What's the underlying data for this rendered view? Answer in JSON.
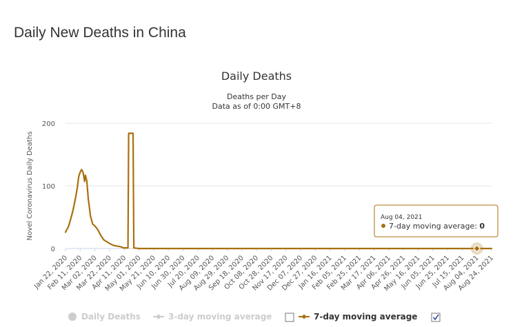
{
  "page": {
    "title": "Daily New Deaths in China"
  },
  "chart_data": {
    "type": "line",
    "title": "Daily Deaths",
    "subtitle": "Deaths per Day",
    "subtitle2": "Data as of 0:00 GMT+8",
    "ylabel": "Novel Coronavirus Daily Deaths",
    "xlabel": "",
    "ylim": [
      0,
      200
    ],
    "yticks": [
      0,
      100,
      200
    ],
    "grid": true,
    "x_start": "Jan 22, 2020",
    "x_end": "Aug 24, 2021",
    "categories": [
      "Jan 22, 2020",
      "Feb 11, 2020",
      "Mar 02, 2020",
      "Mar 22, 2020",
      "Apr 11, 2020",
      "May 01, 2020",
      "May 21, 2020",
      "Jun 10, 2020",
      "Jun 30, 2020",
      "Jul 20, 2020",
      "Aug 09, 2020",
      "Aug 29, 2020",
      "Sep 18, 2020",
      "Oct 08, 2020",
      "Oct 28, 2020",
      "Nov 17, 2020",
      "Dec 07, 2020",
      "Dec 27, 2020",
      "Jan 16, 2021",
      "Feb 05, 2021",
      "Feb 25, 2021",
      "Mar 17, 2021",
      "Apr 06, 2021",
      "Apr 26, 2021",
      "May 16, 2021",
      "Jun 05, 2021",
      "Jun 25, 2021",
      "Jul 15, 2021",
      "Aug 04, 2021",
      "Aug 24, 2021"
    ],
    "series": [
      {
        "name": "Daily Deaths",
        "visible": false,
        "color": "#cccccc",
        "checked": false
      },
      {
        "name": "3-day moving average",
        "visible": false,
        "color": "#cccccc",
        "checked": false
      },
      {
        "name": "7-day moving average",
        "visible": true,
        "color": "#a86f0f",
        "checked": true,
        "points": [
          {
            "x": "Jan 22, 2020",
            "y": 26
          },
          {
            "x": "Jan 26, 2020",
            "y": 35
          },
          {
            "x": "Jan 29, 2020",
            "y": 47
          },
          {
            "x": "Feb 01, 2020",
            "y": 60
          },
          {
            "x": "Feb 04, 2020",
            "y": 77
          },
          {
            "x": "Feb 07, 2020",
            "y": 96
          },
          {
            "x": "Feb 09, 2020",
            "y": 115
          },
          {
            "x": "Feb 11, 2020",
            "y": 122
          },
          {
            "x": "Feb 13, 2020",
            "y": 126
          },
          {
            "x": "Feb 15, 2020",
            "y": 121
          },
          {
            "x": "Feb 17, 2020",
            "y": 107
          },
          {
            "x": "Feb 18, 2020",
            "y": 117
          },
          {
            "x": "Feb 20, 2020",
            "y": 108
          },
          {
            "x": "Feb 22, 2020",
            "y": 80
          },
          {
            "x": "Feb 25, 2020",
            "y": 52
          },
          {
            "x": "Feb 28, 2020",
            "y": 39
          },
          {
            "x": "Mar 02, 2020",
            "y": 36
          },
          {
            "x": "Mar 06, 2020",
            "y": 30
          },
          {
            "x": "Mar 10, 2020",
            "y": 21
          },
          {
            "x": "Mar 14, 2020",
            "y": 14
          },
          {
            "x": "Mar 18, 2020",
            "y": 11
          },
          {
            "x": "Mar 22, 2020",
            "y": 8
          },
          {
            "x": "Mar 27, 2020",
            "y": 5
          },
          {
            "x": "Apr 01, 2020",
            "y": 4
          },
          {
            "x": "Apr 06, 2020",
            "y": 3
          },
          {
            "x": "Apr 10, 2020",
            "y": 1
          },
          {
            "x": "Apr 14, 2020",
            "y": 1
          },
          {
            "x": "Apr 16, 2020",
            "y": 1
          },
          {
            "x": "Apr 17, 2020",
            "y": 184
          },
          {
            "x": "Apr 23, 2020",
            "y": 184
          },
          {
            "x": "Apr 24, 2020",
            "y": 1
          },
          {
            "x": "May 01, 2020",
            "y": 0
          },
          {
            "x": "Jun 10, 2020",
            "y": 0
          },
          {
            "x": "Aug 09, 2020",
            "y": 0
          },
          {
            "x": "Dec 07, 2020",
            "y": 0
          },
          {
            "x": "Jan 16, 2021",
            "y": 0
          },
          {
            "x": "Feb 05, 2021",
            "y": 0
          },
          {
            "x": "Apr 06, 2021",
            "y": 0
          },
          {
            "x": "Jun 05, 2021",
            "y": 0
          },
          {
            "x": "Aug 04, 2021",
            "y": 0
          },
          {
            "x": "Aug 24, 2021",
            "y": 0
          }
        ]
      }
    ],
    "tooltip": {
      "date": "Aug 04, 2021",
      "series_label": "7-day moving average",
      "value": "0"
    },
    "legend": {
      "placement": "bottom",
      "items": [
        {
          "label": "Daily Deaths"
        },
        {
          "label": "3-day moving average"
        },
        {
          "label": "7-day moving average"
        }
      ]
    }
  }
}
